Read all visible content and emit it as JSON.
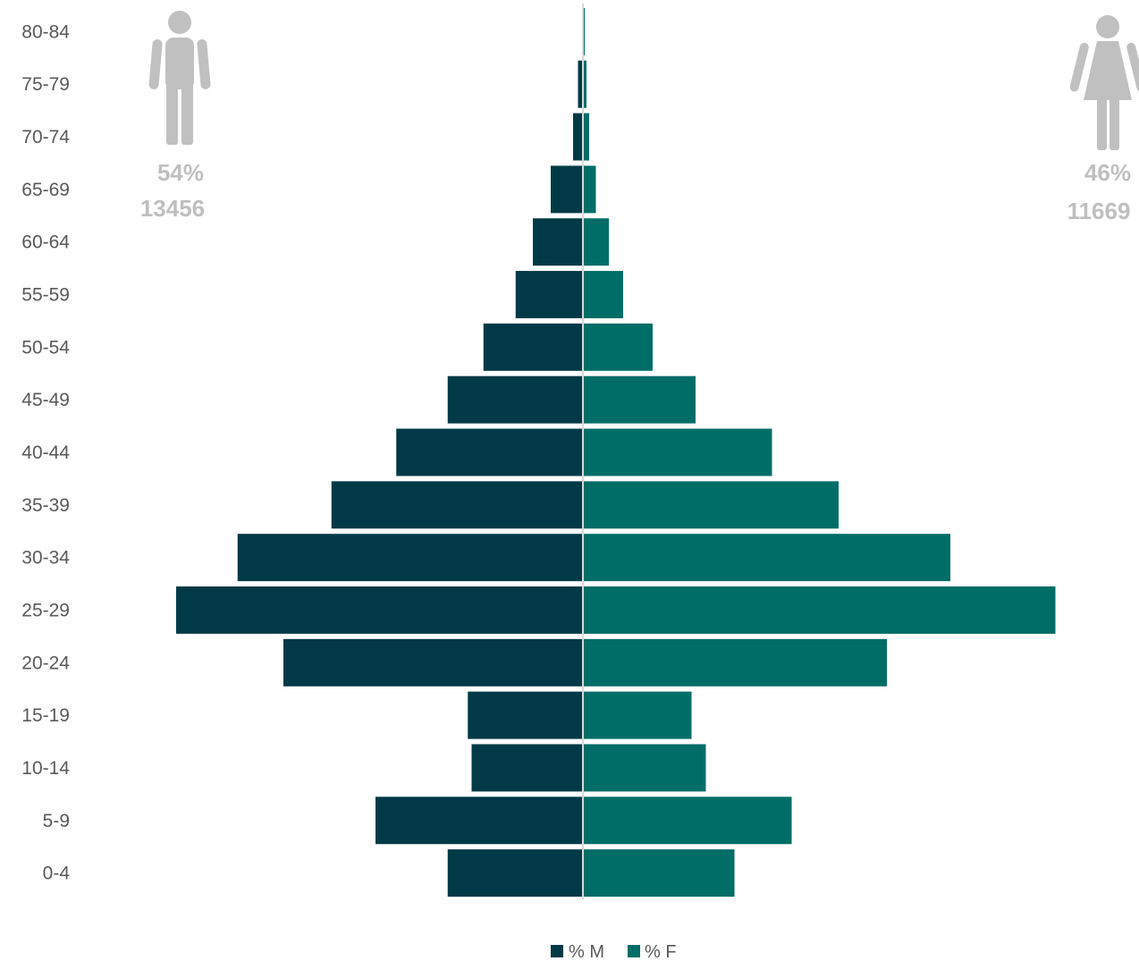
{
  "chart_data": {
    "type": "bar",
    "orientation": "horizontal",
    "subtype": "population-pyramid",
    "categories": [
      "80-84",
      "75-79",
      "70-74",
      "65-69",
      "60-64",
      "55-59",
      "50-54",
      "45-49",
      "40-44",
      "35-39",
      "30-34",
      "25-29",
      "20-24",
      "15-19",
      "10-14",
      "5-9",
      "0-4"
    ],
    "series": [
      {
        "name": "% M",
        "color": "#013A46",
        "direction": "left",
        "values": [
          0.03,
          0.22,
          0.44,
          1.44,
          2.24,
          3.01,
          4.45,
          6.05,
          8.35,
          11.25,
          15.45,
          18.2,
          13.4,
          5.15,
          4.98,
          9.28,
          6.05
        ]
      },
      {
        "name": "% F",
        "color": "#016D67",
        "direction": "right",
        "values": [
          0.08,
          0.16,
          0.28,
          0.58,
          1.16,
          1.8,
          3.12,
          5.04,
          8.46,
          11.44,
          16.44,
          21.14,
          13.6,
          4.86,
          5.5,
          9.34,
          6.78
        ]
      }
    ],
    "legend_position": "bottom",
    "grid": false
  },
  "stats": {
    "male": {
      "icon": "male-person-icon",
      "percent": "54%",
      "count": "13456"
    },
    "female": {
      "icon": "female-person-icon",
      "percent": "46%",
      "count": "11669"
    }
  },
  "legend": [
    {
      "label": "% M",
      "color": "#013A46"
    },
    {
      "label": "% F",
      "color": "#016D67"
    }
  ],
  "colors": {
    "male": "#013A46",
    "female": "#016D67",
    "icon": "#c0c0c0",
    "stat_text": "#bfbfbf"
  }
}
